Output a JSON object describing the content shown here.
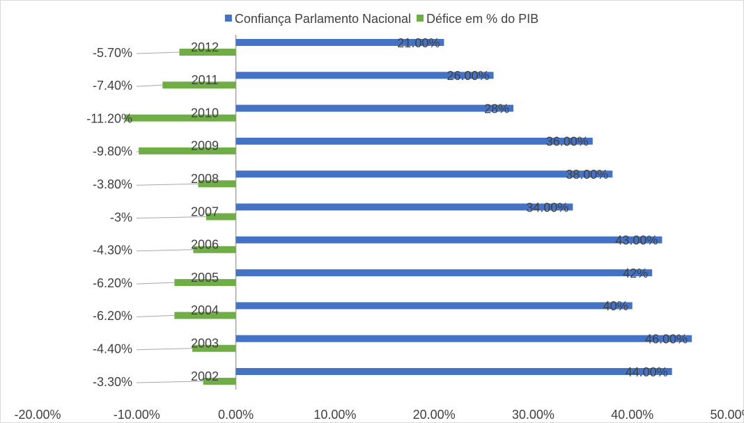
{
  "chart_data": {
    "type": "bar",
    "orientation": "horizontal",
    "categories": [
      "2002",
      "2003",
      "2004",
      "2005",
      "2006",
      "2007",
      "2008",
      "2009",
      "2010",
      "2011",
      "2012"
    ],
    "series": [
      {
        "name": "Confiança Parlamento Nacional",
        "color": "#4472c4",
        "values": [
          44,
          46,
          40,
          42,
          43,
          34,
          38,
          36,
          28,
          26,
          21
        ],
        "value_labels": [
          "44.00%",
          "46.00%",
          "40%",
          "42%",
          "43.00%",
          "34.00%",
          "38.00%",
          "36.00%",
          "28%",
          "26.00%",
          "21.00%"
        ]
      },
      {
        "name": "Défice em % do PIB",
        "color": "#70ad47",
        "values": [
          -3.3,
          -4.4,
          -6.2,
          -6.2,
          -4.3,
          -3,
          -3.8,
          -9.8,
          -11.2,
          -7.4,
          -5.7
        ],
        "value_labels": [
          "-3.30%",
          "-4.40%",
          "-6.20%",
          "-6.20%",
          "-4.30%",
          "-3%",
          "-3.80%",
          "-9.80%",
          "-11.20%",
          "-7.40%",
          "-5.70%"
        ]
      }
    ],
    "xlim": [
      -20,
      50
    ],
    "xticks": [
      {
        "value": -20,
        "label": "-20.00%"
      },
      {
        "value": -10,
        "label": "-10.00%"
      },
      {
        "value": 0,
        "label": "0.00%"
      },
      {
        "value": 10,
        "label": "10.00%"
      },
      {
        "value": 20,
        "label": "20.00%"
      },
      {
        "value": 30,
        "label": "30.00%"
      },
      {
        "value": 40,
        "label": "40.00%"
      },
      {
        "value": 50,
        "label": "50.00%"
      }
    ],
    "legend": "top"
  }
}
